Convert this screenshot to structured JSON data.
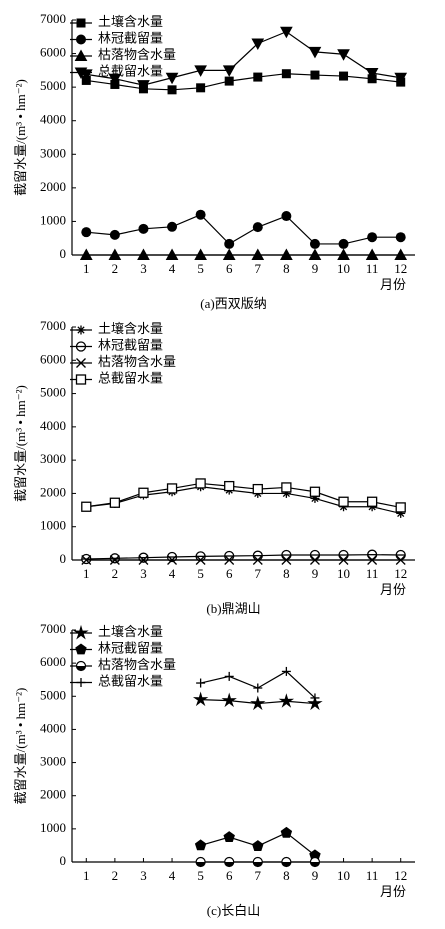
{
  "chart_data": [
    {
      "type": "line",
      "title": "(a)西双版纳",
      "xlabel": "月份",
      "ylabel": "截留水量/(m³ • hm⁻²)",
      "x": [
        1,
        2,
        3,
        4,
        5,
        6,
        7,
        8,
        9,
        10,
        11,
        12
      ],
      "xlim": [
        0.5,
        12.5
      ],
      "xticks": [
        1,
        2,
        3,
        4,
        5,
        6,
        7,
        8,
        9,
        10,
        11,
        12
      ],
      "ylim": [
        0,
        7000
      ],
      "yticks": [
        0,
        1000,
        2000,
        3000,
        4000,
        5000,
        6000,
        7000
      ],
      "legend": "upper-left",
      "series": [
        {
          "name": "土壤含水量",
          "color": "#000000",
          "marker": "square",
          "values": [
            5200,
            5080,
            4950,
            4920,
            4980,
            5180,
            5300,
            5400,
            5360,
            5330,
            5250,
            5150
          ]
        },
        {
          "name": "林冠截留量",
          "color": "#000000",
          "marker": "circle",
          "values": [
            680,
            600,
            780,
            840,
            1200,
            330,
            830,
            1160,
            330,
            330,
            530,
            530
          ]
        },
        {
          "name": "枯落物含水量",
          "color": "#000000",
          "marker": "triangle",
          "values": [
            0,
            0,
            0,
            0,
            0,
            0,
            0,
            0,
            0,
            0,
            0,
            0
          ]
        },
        {
          "name": "总截留水量",
          "color": "#000000",
          "marker": "triangle-down",
          "values": [
            5380,
            5250,
            5060,
            5280,
            5500,
            5500,
            6300,
            6650,
            6050,
            5980,
            5420,
            5280
          ]
        }
      ]
    },
    {
      "type": "line",
      "title": "(b)鼎湖山",
      "xlabel": "月份",
      "ylabel": "截留水量/(m³ • hm⁻²)",
      "x": [
        1,
        2,
        3,
        4,
        5,
        6,
        7,
        8,
        9,
        10,
        11,
        12
      ],
      "xlim": [
        0.5,
        12.5
      ],
      "xticks": [
        1,
        2,
        3,
        4,
        5,
        6,
        7,
        8,
        9,
        10,
        11,
        12
      ],
      "ylim": [
        0,
        7000
      ],
      "yticks": [
        0,
        1000,
        2000,
        3000,
        4000,
        5000,
        6000,
        7000
      ],
      "legend": "upper-left",
      "series": [
        {
          "name": "土壤含水量",
          "color": "#000000",
          "marker": "asterisk",
          "values": [
            1600,
            1700,
            1950,
            2050,
            2200,
            2100,
            2000,
            2000,
            1850,
            1600,
            1600,
            1400
          ]
        },
        {
          "name": "林冠截留量",
          "color": "#000000",
          "marker": "open-circle",
          "values": [
            30,
            50,
            70,
            90,
            110,
            120,
            130,
            150,
            150,
            150,
            160,
            150
          ]
        },
        {
          "name": "枯落物含水量",
          "color": "#000000",
          "marker": "x",
          "values": [
            0,
            0,
            0,
            0,
            0,
            0,
            0,
            0,
            0,
            0,
            0,
            0
          ]
        },
        {
          "name": "总截留水量",
          "color": "#000000",
          "marker": "open-square",
          "values": [
            1600,
            1720,
            2020,
            2150,
            2300,
            2220,
            2130,
            2180,
            2050,
            1750,
            1750,
            1580
          ]
        }
      ]
    },
    {
      "type": "line",
      "title": "(c)长白山",
      "xlabel": "月份",
      "ylabel": "截留水量/(m³ • hm⁻²)",
      "x": [
        1,
        2,
        3,
        4,
        5,
        6,
        7,
        8,
        9,
        10,
        11,
        12
      ],
      "xlim": [
        0.5,
        12.5
      ],
      "xticks": [
        1,
        2,
        3,
        4,
        5,
        6,
        7,
        8,
        9,
        10,
        11,
        12
      ],
      "ylim": [
        0,
        7000
      ],
      "yticks": [
        0,
        1000,
        2000,
        3000,
        4000,
        5000,
        6000,
        7000
      ],
      "legend": "upper-left",
      "series": [
        {
          "name": "土壤含水量",
          "color": "#000000",
          "marker": "star",
          "values": [
            null,
            null,
            null,
            null,
            4900,
            4870,
            4780,
            4850,
            4780,
            null,
            null,
            null
          ]
        },
        {
          "name": "林冠截留量",
          "color": "#000000",
          "marker": "pentagon",
          "values": [
            null,
            null,
            null,
            null,
            500,
            750,
            480,
            880,
            200,
            null,
            null,
            null
          ]
        },
        {
          "name": "枯落物含水量",
          "color": "#000000",
          "marker": "half-circle",
          "values": [
            null,
            null,
            null,
            null,
            0,
            0,
            0,
            0,
            0,
            null,
            null,
            null
          ]
        },
        {
          "name": "总截留水量",
          "color": "#000000",
          "marker": "plus",
          "values": [
            null,
            null,
            null,
            null,
            5400,
            5600,
            5250,
            5750,
            4950,
            null,
            null,
            null
          ]
        }
      ]
    }
  ]
}
